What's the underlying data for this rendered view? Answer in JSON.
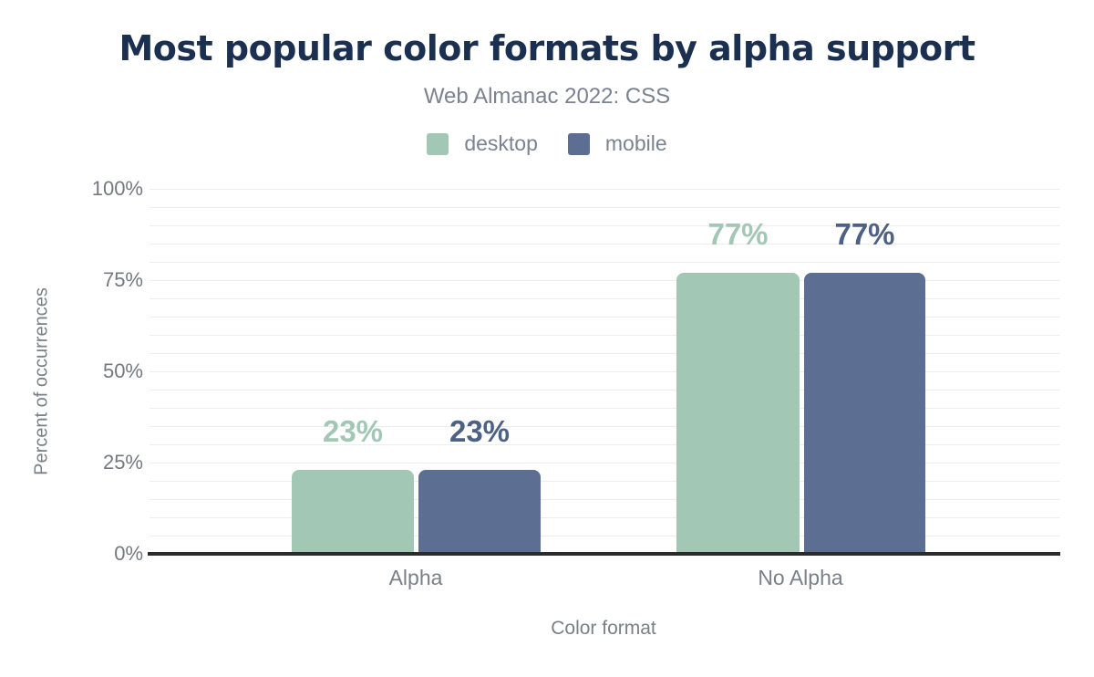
{
  "header": {
    "title": "Most popular color formats by alpha support",
    "subtitle": "Web Almanac 2022: CSS"
  },
  "colors": {
    "title_navy": "#1b3050",
    "gray_text": "#7a8088",
    "desktop_green": "#a2c8b5",
    "mobile_blue": "#5c6e91",
    "mobile_value_label": "#4d6186",
    "axis_line": "#2b2b2b",
    "gridline": "#ededed"
  },
  "chart_data": {
    "type": "bar",
    "title": "Most popular color formats by alpha support",
    "subtitle": "Web Almanac 2022: CSS",
    "categories": [
      "Alpha",
      "No Alpha"
    ],
    "series": [
      {
        "name": "desktop",
        "color": "#a2c8b5",
        "label_color": "#a2c8b5",
        "values": [
          23,
          77
        ],
        "labels": [
          "23%",
          "77%"
        ]
      },
      {
        "name": "mobile",
        "color": "#5c6e91",
        "label_color": "#4d6186",
        "values": [
          23,
          77
        ],
        "labels": [
          "23%",
          "77%"
        ]
      }
    ],
    "xlabel": "Color format",
    "ylabel": "Percent of occurrences",
    "y_ticks": [
      "100%",
      "75%",
      "50%",
      "25%",
      "0%"
    ],
    "ylim": [
      0,
      100
    ],
    "grid": "horizontal minor lines every 5%",
    "legend_position": "top-center"
  }
}
